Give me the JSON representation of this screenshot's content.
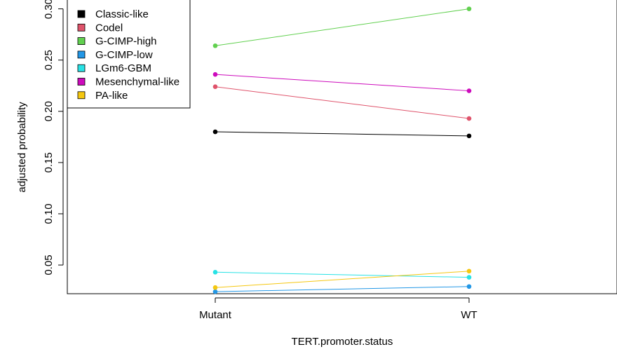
{
  "chart_data": {
    "type": "line",
    "xlabel": "TERT.promoter.status",
    "ylabel": "adjusted probability",
    "categories": [
      "Mutant",
      "WT"
    ],
    "ylim": [
      0.022,
      0.31
    ],
    "yticks": [
      "0.05",
      "0.10",
      "0.15",
      "0.20",
      "0.25",
      "0.30"
    ],
    "legend_position": "top-left",
    "grid": false,
    "series": [
      {
        "name": "Classic-like",
        "color": "#000000",
        "values": [
          0.18,
          0.176
        ]
      },
      {
        "name": "Codel",
        "color": "#DF536B",
        "values": [
          0.224,
          0.193
        ]
      },
      {
        "name": "G-CIMP-high",
        "color": "#61D04F",
        "values": [
          0.264,
          0.3
        ]
      },
      {
        "name": "G-CIMP-low",
        "color": "#2297E6",
        "values": [
          0.024,
          0.029
        ]
      },
      {
        "name": "LGm6-GBM",
        "color": "#28E2E5",
        "values": [
          0.043,
          0.038
        ]
      },
      {
        "name": "Mesenchymal-like",
        "color": "#CD0BBC",
        "values": [
          0.236,
          0.22
        ]
      },
      {
        "name": "PA-like",
        "color": "#F5C710",
        "values": [
          0.028,
          0.044
        ]
      }
    ]
  }
}
